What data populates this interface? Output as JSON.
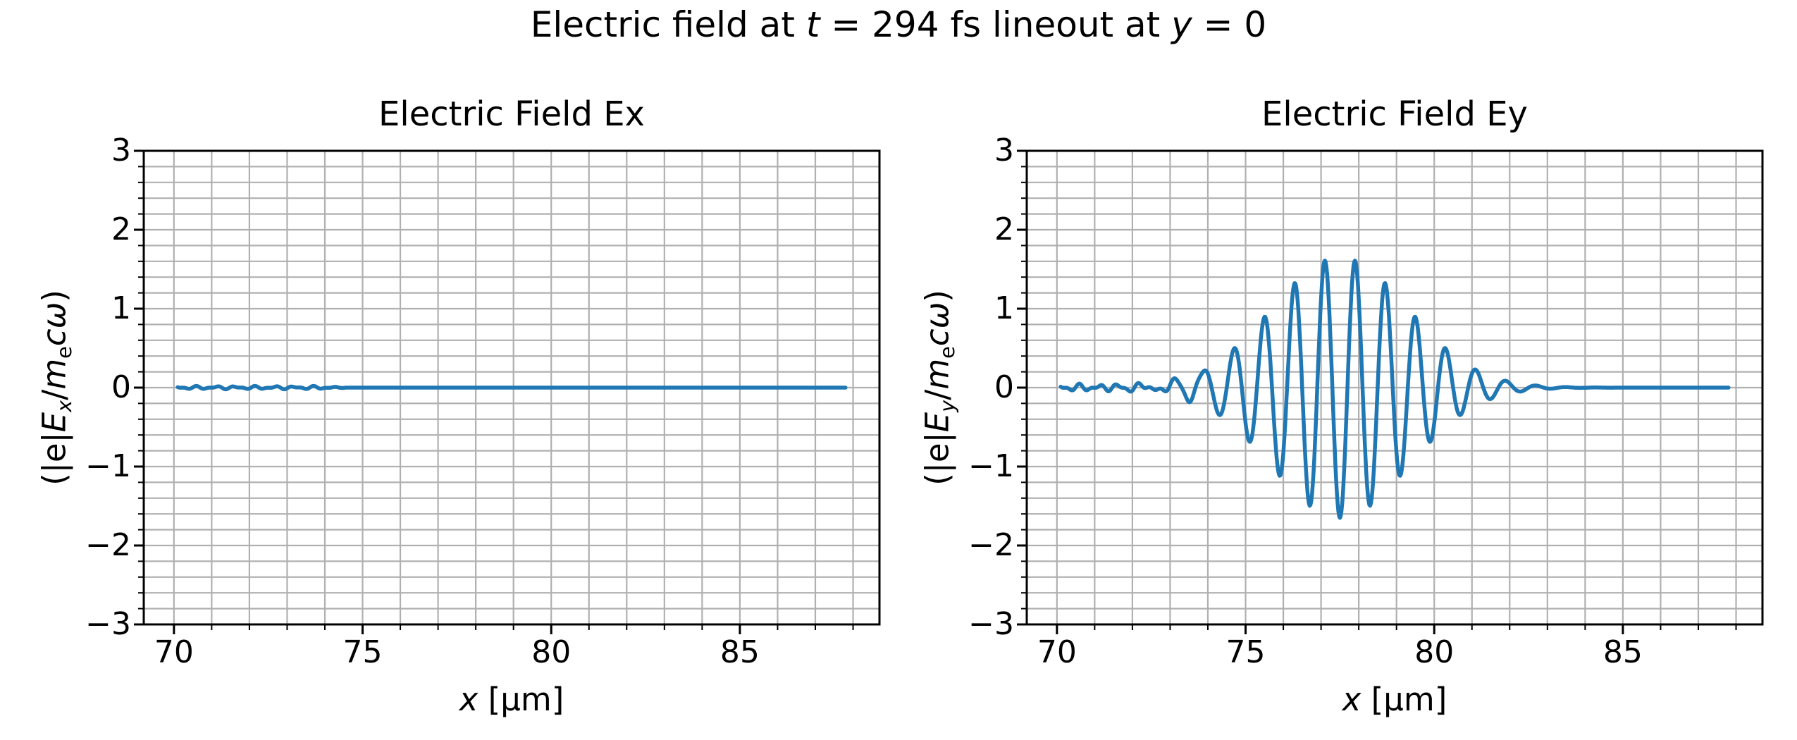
{
  "figure": {
    "suptitle": "Electric field at t = 294 fs lineout at y = 0",
    "suptitle_parts": [
      {
        "t": "Electric field at "
      },
      {
        "t": "t",
        "i": true
      },
      {
        "t": " = 294 fs lineout at "
      },
      {
        "t": "y",
        "i": true
      },
      {
        "t": " = 0"
      }
    ],
    "background_color": "#ffffff",
    "text_color": "#000000"
  },
  "chart_data": [
    {
      "id": "ex",
      "type": "line",
      "title": "Electric Field Ex",
      "xlabel": "x [μm]",
      "xlabel_parts": [
        {
          "t": "x",
          "i": true
        },
        {
          "t": " [μm]"
        }
      ],
      "ylabel": "(|e|Ex/mecω)",
      "ylabel_parts": [
        {
          "t": "(|e|"
        },
        {
          "t": "E",
          "i": true
        },
        {
          "t": "x",
          "i": true,
          "s": true
        },
        {
          "t": "/"
        },
        {
          "t": "m",
          "i": true
        },
        {
          "t": "e",
          "s": true
        },
        {
          "t": "c",
          "i": true
        },
        {
          "t": "ω",
          "i": true
        },
        {
          "t": ")"
        }
      ],
      "xlim": [
        69.2,
        88.7
      ],
      "ylim": [
        -3,
        3
      ],
      "xticks": [
        70,
        75,
        80,
        85
      ],
      "x_tick_labels": [
        "70",
        "75",
        "80",
        "85"
      ],
      "yticks": [
        3,
        2,
        1,
        0,
        -1,
        -2,
        -3
      ],
      "y_tick_labels": [
        "3",
        "2",
        "1",
        "0",
        "−1",
        "−2",
        "−3"
      ],
      "minor_x_step": 1,
      "minor_y_step": 0.2,
      "grid": "both",
      "grid_color": "#b0b0b0",
      "line_color": "#1f77b4",
      "series": [
        {
          "name": "Ex",
          "x_range": [
            70.1,
            87.8
          ],
          "description": "Essentially zero everywhere; tiny noise (|y| < 0.04) between x = 70.1 and x = 74, then flat at 0 up to x = 87.8.",
          "model": {
            "kind": "noise",
            "noise_amplitude": 0.022,
            "noise_end": 74.0
          },
          "sample_points": [
            [
              70.1,
              0.02
            ],
            [
              71.0,
              -0.02
            ],
            [
              72.0,
              0.02
            ],
            [
              73.0,
              -0.01
            ],
            [
              74.0,
              0.0
            ],
            [
              76.0,
              0.0
            ],
            [
              80.0,
              0.0
            ],
            [
              84.0,
              0.0
            ],
            [
              87.8,
              0.0
            ]
          ]
        }
      ]
    },
    {
      "id": "ey",
      "type": "line",
      "title": "Electric Field Ey",
      "xlabel": "x [μm]",
      "xlabel_parts": [
        {
          "t": "x",
          "i": true
        },
        {
          "t": " [μm]"
        }
      ],
      "ylabel": "(|e|Ey/mecω)",
      "ylabel_parts": [
        {
          "t": "(|e|"
        },
        {
          "t": "E",
          "i": true
        },
        {
          "t": "y",
          "i": true,
          "s": true
        },
        {
          "t": "/"
        },
        {
          "t": "m",
          "i": true
        },
        {
          "t": "e",
          "s": true
        },
        {
          "t": "c",
          "i": true
        },
        {
          "t": "ω",
          "i": true
        },
        {
          "t": ")"
        }
      ],
      "xlim": [
        69.2,
        88.7
      ],
      "ylim": [
        -3,
        3
      ],
      "xticks": [
        70,
        75,
        80,
        85
      ],
      "x_tick_labels": [
        "70",
        "75",
        "80",
        "85"
      ],
      "yticks": [
        3,
        2,
        1,
        0,
        -1,
        -2,
        -3
      ],
      "y_tick_labels": [
        "3",
        "2",
        "1",
        "0",
        "−1",
        "−2",
        "−3"
      ],
      "minor_x_step": 1,
      "minor_y_step": 0.2,
      "grid": "both",
      "grid_color": "#b0b0b0",
      "line_color": "#1f77b4",
      "series": [
        {
          "name": "Ey",
          "x_range": [
            70.1,
            87.8
          ],
          "description": "Small noise (|y| < 0.08) from x = 70.1 to ~73.6, then a Gaussian-envelope wave packet between ~73.8 and ~81.8 (carrier wavelength ~0.8 um, envelope peak ~1.65 at x ~77.5), then flat at 0 to x = 87.8.",
          "model": {
            "kind": "wavepacket",
            "amplitude": 1.65,
            "center": 77.5,
            "sigma": 2.56,
            "wavelength": 0.8,
            "noise_amplitude": 0.05,
            "noise_end": 73.6
          },
          "sample_points": [
            [
              70.1,
              0.0
            ],
            [
              73.65,
              -0.12
            ],
            [
              74.05,
              0.19
            ],
            [
              74.4,
              -0.33
            ],
            [
              74.75,
              0.52
            ],
            [
              75.1,
              -0.73
            ],
            [
              75.55,
              0.96
            ],
            [
              75.9,
              -1.19
            ],
            [
              76.3,
              1.37
            ],
            [
              76.7,
              -1.52
            ],
            [
              77.1,
              1.61
            ],
            [
              77.5,
              -1.67
            ],
            [
              77.9,
              1.61
            ],
            [
              78.3,
              -1.47
            ],
            [
              78.65,
              1.37
            ],
            [
              79.05,
              -1.16
            ],
            [
              79.45,
              1.0
            ],
            [
              79.85,
              -0.74
            ],
            [
              80.25,
              0.55
            ],
            [
              80.6,
              -0.33
            ],
            [
              81.0,
              0.18
            ],
            [
              81.35,
              -0.07
            ],
            [
              82.0,
              0.0
            ],
            [
              85.0,
              0.0
            ],
            [
              87.8,
              0.0
            ]
          ]
        }
      ]
    }
  ]
}
